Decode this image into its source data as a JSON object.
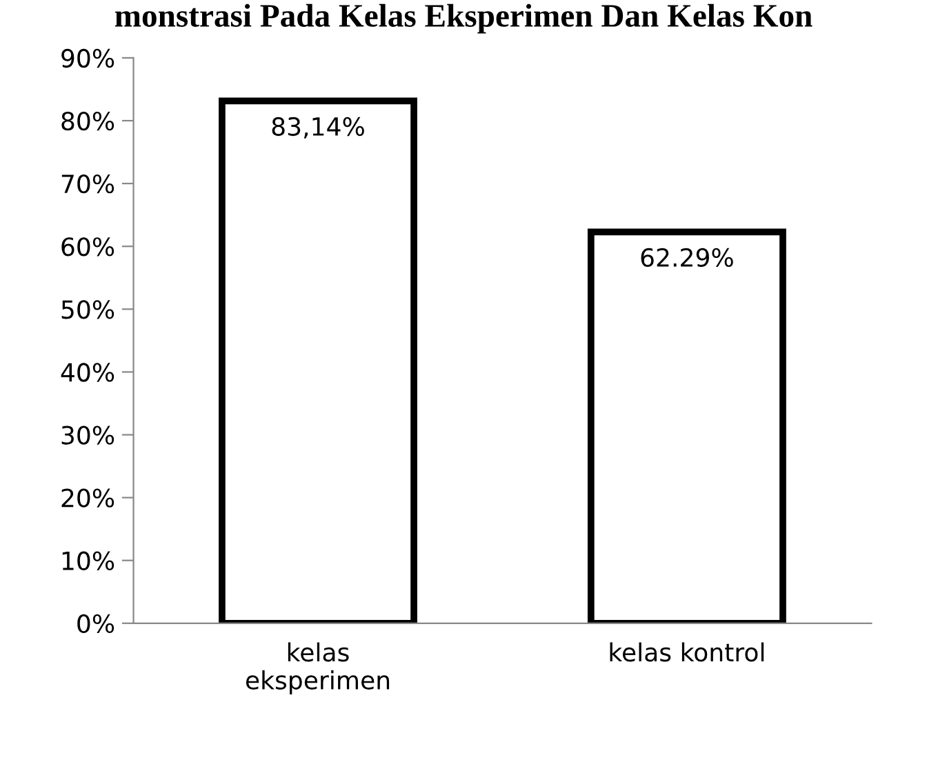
{
  "chart_data": {
    "type": "bar",
    "title": "monstrasi Pada Kelas Eksperimen Dan Kelas Kon",
    "categories": [
      "kelas\neksperimen",
      "kelas kontrol"
    ],
    "series": [
      {
        "color": "#ffffff",
        "values": [
          83.14,
          62.29
        ],
        "value_labels": [
          "83,14%",
          "62.29%"
        ]
      }
    ],
    "ylim": [
      0,
      90
    ],
    "yticks": [
      {
        "value": 0,
        "label": "0%"
      },
      {
        "value": 10,
        "label": "10%"
      },
      {
        "value": 20,
        "label": "20%"
      },
      {
        "value": 30,
        "label": "30%"
      },
      {
        "value": 40,
        "label": "40%"
      },
      {
        "value": 50,
        "label": "50%"
      },
      {
        "value": 60,
        "label": "60%"
      },
      {
        "value": 70,
        "label": "70%"
      },
      {
        "value": 80,
        "label": "80%"
      },
      {
        "value": 90,
        "label": "90%"
      }
    ],
    "grid": false,
    "legend": false
  }
}
